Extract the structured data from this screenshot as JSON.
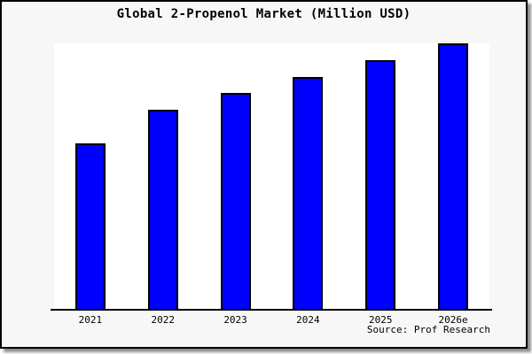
{
  "frame": {
    "background": "#f7f7f7",
    "border_color": "#000000",
    "shadow_color": "#737373"
  },
  "chart_data": {
    "type": "bar",
    "title": "Global 2-Propenol Market (Million USD)",
    "categories": [
      "2021",
      "2022",
      "2023",
      "2024",
      "2025",
      "2026e"
    ],
    "values": [
      62.5,
      75,
      81.25,
      87.5,
      93.75,
      100
    ],
    "values_note": "relative bar heights in % of tallest bar; y-axis has no ticks or labels in the image",
    "xlabel": "",
    "ylabel": "",
    "ylim": [
      0,
      100
    ],
    "grid": false,
    "legend": null,
    "y_axis_visible": false,
    "bar_color": "#0000ff",
    "bar_edge_color": "#000000",
    "plot_background": "#ffffff",
    "axis_color": "#000000"
  },
  "source": {
    "label": "Source: Prof Research"
  }
}
